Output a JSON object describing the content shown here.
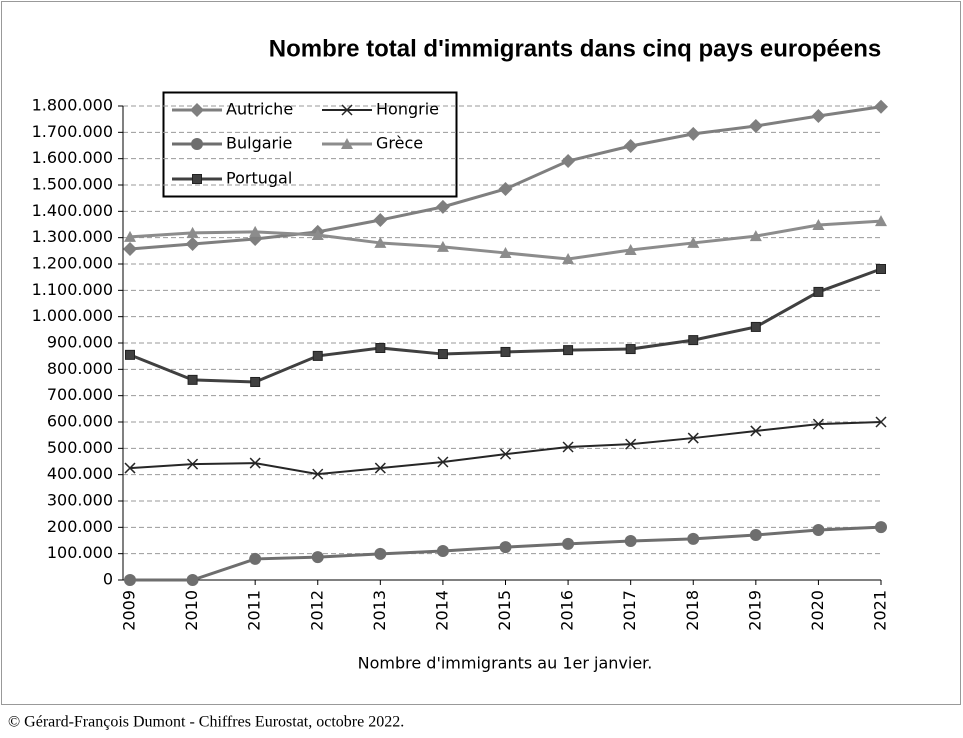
{
  "chart_data": {
    "type": "line",
    "title": "Nombre total d'immigrants dans cinq pays européens",
    "x_label": "Nombre d'immigrants au 1er janvier.",
    "note": "© Gérard-François Dumont - Chiffres  Eurostat, octobre 2022.",
    "categories": [
      "2009",
      "2010",
      "2011",
      "2012",
      "2013",
      "2014",
      "2015",
      "2016",
      "2017",
      "2018",
      "2019",
      "2020",
      "2021"
    ],
    "series": [
      {
        "name": "Autriche",
        "color": "#7f7f7f",
        "marker": "diamond",
        "values": [
          1257000,
          1276000,
          1295000,
          1322000,
          1367000,
          1417000,
          1485000,
          1591000,
          1648000,
          1694000,
          1724000,
          1762000,
          1797000
        ]
      },
      {
        "name": "Hongrie",
        "color": "#262626",
        "marker": "x",
        "values": [
          425000,
          440000,
          444000,
          402000,
          425000,
          448000,
          478000,
          505000,
          516000,
          539000,
          566000,
          592000,
          600000
        ]
      },
      {
        "name": "Bulgarie",
        "color": "#6e6e6e",
        "marker": "circle",
        "values": [
          0,
          0,
          80000,
          87000,
          99000,
          110000,
          125000,
          137000,
          148000,
          156000,
          171000,
          190000,
          201000
        ]
      },
      {
        "name": "Grèce",
        "color": "#8c8c8c",
        "marker": "triangle",
        "values": [
          1303000,
          1318000,
          1322000,
          1310000,
          1280000,
          1265000,
          1242000,
          1219000,
          1253000,
          1280000,
          1306000,
          1348000,
          1363000
        ]
      },
      {
        "name": "Portugal",
        "color": "#404040",
        "marker": "square",
        "values": [
          855000,
          760000,
          752000,
          851000,
          881000,
          858000,
          866000,
          873000,
          877000,
          911000,
          961000,
          1094000,
          1181000
        ]
      }
    ],
    "ylim": [
      0,
      1800000
    ],
    "yticks": [
      0,
      {
        "value": 100000,
        "label": "100.000"
      },
      {
        "value": 200000,
        "label": "200.000"
      },
      {
        "value": 300000,
        "label": "300.000"
      },
      {
        "value": 400000,
        "label": "400.000"
      },
      {
        "value": 500000,
        "label": "500.000"
      },
      {
        "value": 600000,
        "label": "600.000"
      },
      {
        "value": 700000,
        "label": "700.000"
      },
      {
        "value": 800000,
        "label": "800.000"
      },
      {
        "value": 900000,
        "label": "900.000"
      },
      {
        "value": 1000000,
        "label": "1.000.000"
      },
      {
        "value": 1100000,
        "label": "1.100.000"
      },
      {
        "value": 1200000,
        "label": "1.200.000"
      },
      {
        "value": 1300000,
        "label": "1.300.000"
      },
      {
        "value": 1400000,
        "label": "1.400.000"
      },
      {
        "value": 1500000,
        "label": "1.500.000"
      },
      {
        "value": 1600000,
        "label": "1.600.000"
      },
      {
        "value": 1700000,
        "label": "1.700.000"
      },
      {
        "value": 1800000,
        "label": "1.800.000"
      }
    ],
    "grid": true,
    "legend": "upper left"
  }
}
